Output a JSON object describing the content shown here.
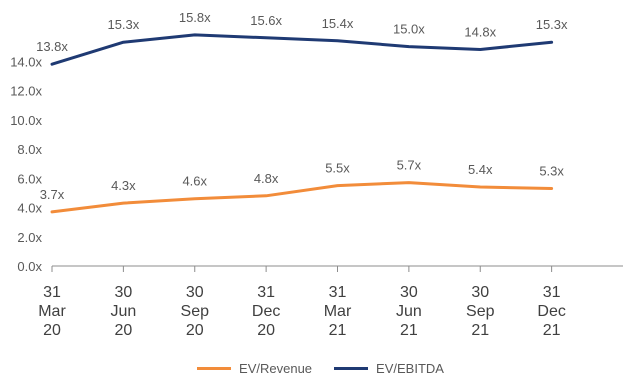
{
  "chart_data": {
    "type": "line",
    "categories": [
      [
        "31",
        "Mar",
        "20"
      ],
      [
        "30",
        "Jun",
        "20"
      ],
      [
        "30",
        "Sep",
        "20"
      ],
      [
        "31",
        "Dec",
        "20"
      ],
      [
        "31",
        "Mar",
        "21"
      ],
      [
        "30",
        "Jun",
        "21"
      ],
      [
        "30",
        "Sep",
        "21"
      ],
      [
        "31",
        "Dec",
        "21"
      ]
    ],
    "series": [
      {
        "name": "EV/Revenue",
        "color": "#F28C3A",
        "values": [
          3.7,
          4.3,
          4.6,
          4.8,
          5.5,
          5.7,
          5.4,
          5.3
        ],
        "labels": [
          "3.7x",
          "4.3x",
          "4.6x",
          "4.8x",
          "5.5x",
          "5.7x",
          "5.4x",
          "5.3x"
        ]
      },
      {
        "name": "EV/EBITDA",
        "color": "#1F3A73",
        "values": [
          13.8,
          15.3,
          15.8,
          15.6,
          15.4,
          15.0,
          14.8,
          15.3
        ],
        "labels": [
          "13.8x",
          "15.3x",
          "15.8x",
          "15.6x",
          "15.4x",
          "15.0x",
          "14.8x",
          "15.3x"
        ]
      }
    ],
    "yticks": [
      0,
      2,
      4,
      6,
      8,
      10,
      12,
      14
    ],
    "ytick_labels": [
      "0.0x",
      "2.0x",
      "4.0x",
      "6.0x",
      "8.0x",
      "10.0x",
      "12.0x",
      "14.0x"
    ],
    "ylim": [
      0,
      16
    ],
    "grid": false,
    "legend_position": "bottom",
    "title": "",
    "xlabel": "",
    "ylabel": ""
  }
}
